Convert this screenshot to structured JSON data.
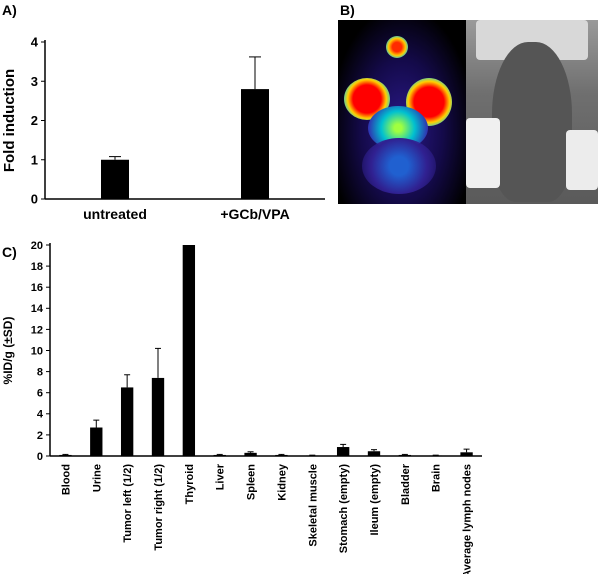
{
  "panels": {
    "a_label": "A)",
    "b_label": "B)",
    "c_label": "C)"
  },
  "chart_data": [
    {
      "type": "bar",
      "panel": "A",
      "categories": [
        "untreated",
        "+GCb/VPA"
      ],
      "values": [
        1.0,
        2.8
      ],
      "errors": [
        0.08,
        0.82
      ],
      "title": "",
      "xlabel": "",
      "ylabel": "Fold induction",
      "ylim": [
        0,
        4
      ],
      "yticks": [
        0,
        1,
        2,
        3,
        4
      ],
      "grid": false,
      "bar_color": "#000000"
    },
    {
      "type": "bar",
      "panel": "C",
      "categories": [
        "Blood",
        "Urine",
        "Tumor left (1/2)",
        "Tumor right (1/2)",
        "Thyroid",
        "Liver",
        "Spleen",
        "Kidney",
        "Skeletal muscle",
        "Stomach (empty)",
        "Ileum (empty)",
        "Bladder",
        "Brain",
        "Average lymph nodes"
      ],
      "values": [
        0.1,
        2.7,
        6.5,
        7.4,
        20.0,
        0.1,
        0.3,
        0.1,
        0.05,
        0.85,
        0.45,
        0.1,
        0.05,
        0.35
      ],
      "errors": [
        0.05,
        0.7,
        1.2,
        2.8,
        0,
        0.05,
        0.1,
        0.05,
        0.03,
        0.25,
        0.15,
        0.05,
        0.03,
        0.3
      ],
      "title": "",
      "xlabel": "",
      "ylabel": "%ID/g (±SD)",
      "ylim": [
        0,
        20
      ],
      "yticks": [
        0,
        2,
        4,
        6,
        8,
        10,
        12,
        14,
        16,
        18,
        20
      ],
      "grid": false,
      "bar_color": "#000000"
    }
  ]
}
